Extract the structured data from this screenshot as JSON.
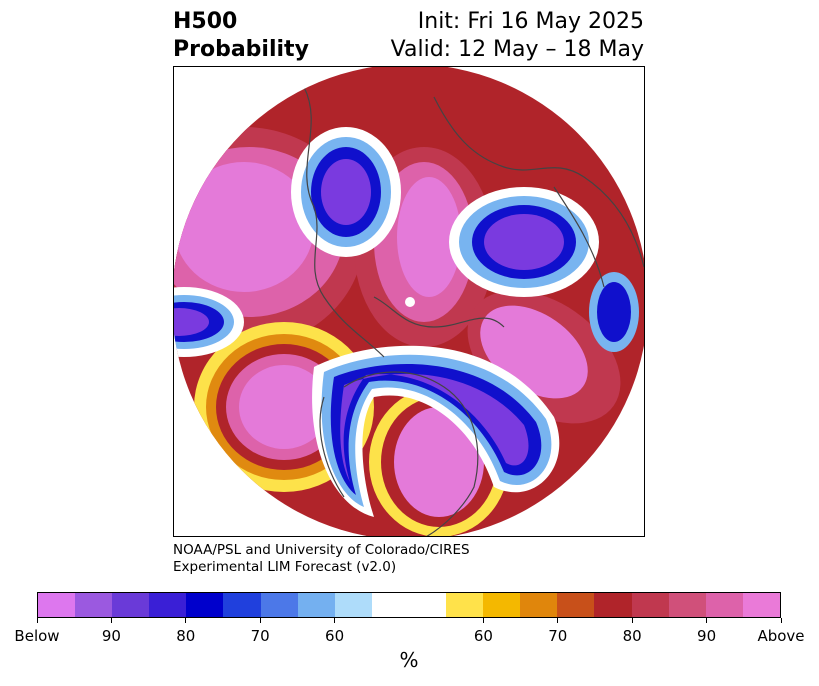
{
  "title": {
    "left_line1": "H500",
    "left_line2": "Probability",
    "right_line1": "Init: Fri 16 May 2025",
    "right_line2": "Valid: 12 May – 18 May"
  },
  "credit": {
    "line1": "NOAA/PSL and University of Colorado/CIRES",
    "line2": "Experimental LIM Forecast (v2.0)"
  },
  "colorbar": {
    "colors": [
      "#dd77ee",
      "#9b59e0",
      "#6a3ad8",
      "#3a1fd6",
      "#0000cc",
      "#2040dd",
      "#4c78e8",
      "#74b0f0",
      "#aedcfa",
      "#ffffff",
      "#ffffff",
      "#ffe24a",
      "#f4b800",
      "#e0860c",
      "#c8501a",
      "#b0242a",
      "#c0384f",
      "#d0507a",
      "#dd62aa",
      "#ea7ad8"
    ],
    "labels": [
      "Below",
      "90",
      "80",
      "70",
      "60",
      "60",
      "70",
      "80",
      "90",
      "Above"
    ],
    "units": "%"
  },
  "map": {
    "colors": {
      "below_strong": "#e47ad9",
      "below_mid": "#7a3adf",
      "below_blue": "#1010cc",
      "below_light": "#78b4f0",
      "neutral": "#ffffff",
      "above_yellow": "#fde24a",
      "above_orange": "#e08a10",
      "above_red": "#b0242a",
      "above_magenta": "#e47ad9",
      "land_line": "#444444"
    }
  }
}
